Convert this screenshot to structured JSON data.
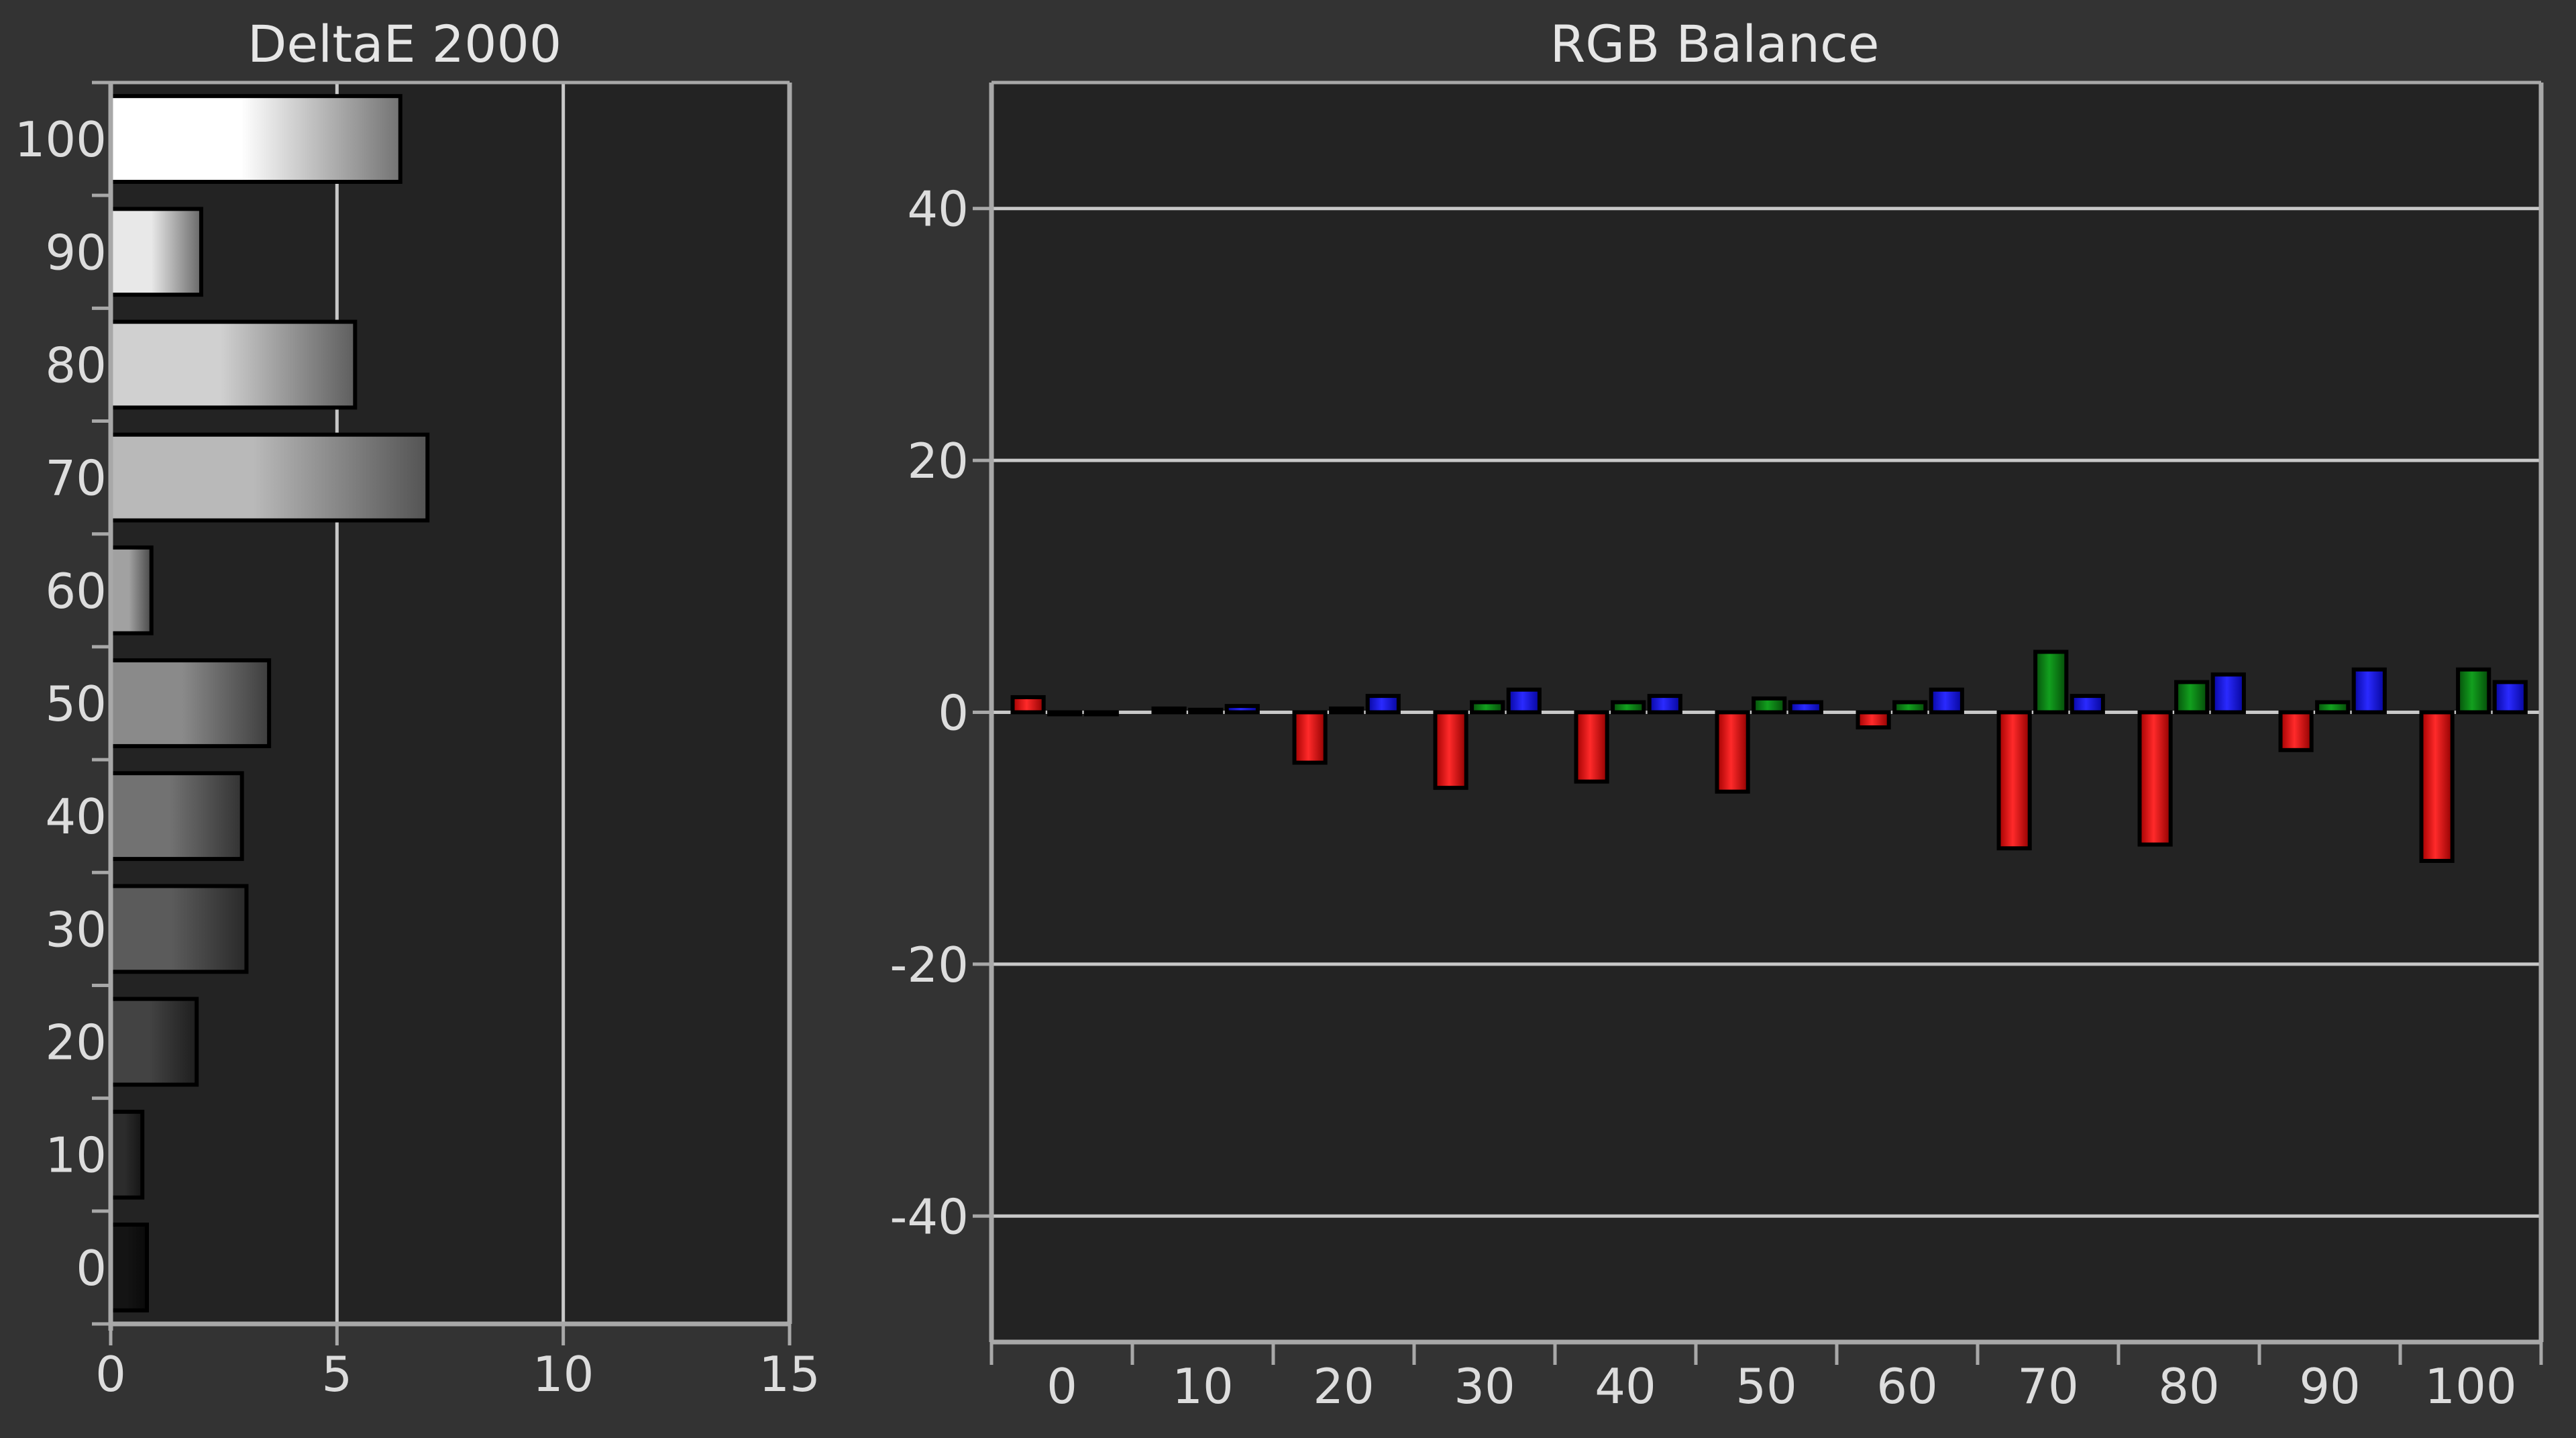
{
  "colors": {
    "background": "#333333",
    "plot_background": "#232323",
    "gridline": "#c8c8c8",
    "axis": "#a8a8a8",
    "text": "#dddddd",
    "red": "#ff1010",
    "green": "#0a8c14",
    "blue": "#1414ff"
  },
  "chart_data": [
    {
      "type": "bar",
      "orientation": "horizontal",
      "title": "DeltaE 2000",
      "xlabel": "",
      "ylabel": "",
      "categories": [
        "100",
        "90",
        "80",
        "70",
        "60",
        "50",
        "40",
        "30",
        "20",
        "10",
        "0"
      ],
      "values": [
        6.4,
        2.0,
        5.4,
        7.0,
        0.9,
        3.5,
        2.9,
        3.0,
        1.9,
        0.7,
        0.8
      ],
      "xlim": [
        0,
        15
      ],
      "xticks": [
        "0",
        "5",
        "10",
        "15"
      ],
      "grid": "vertical at 5 and 10",
      "legend": "none",
      "bar_style": "grayscale gradient, brightness increases with category"
    },
    {
      "type": "bar",
      "orientation": "vertical",
      "title": "RGB Balance",
      "xlabel": "",
      "ylabel": "",
      "categories": [
        "0",
        "10",
        "20",
        "30",
        "40",
        "50",
        "60",
        "70",
        "80",
        "90",
        "100"
      ],
      "series": [
        {
          "color": "red",
          "values": [
            1.2,
            0.3,
            -4.0,
            -6.0,
            -5.5,
            -6.3,
            -1.2,
            -10.8,
            -10.5,
            -3.0,
            -11.8
          ]
        },
        {
          "color": "green",
          "values": [
            0.0,
            0.2,
            0.3,
            0.8,
            0.8,
            1.1,
            0.8,
            4.8,
            2.4,
            0.8,
            3.4
          ]
        },
        {
          "color": "blue",
          "values": [
            0.0,
            0.5,
            1.3,
            1.8,
            1.3,
            0.8,
            1.8,
            1.3,
            3.0,
            3.4,
            2.4
          ]
        }
      ],
      "ylim": [
        -50,
        50
      ],
      "yticks": [
        "40",
        "20",
        "0",
        "-20",
        "-40"
      ],
      "grid": "horizontal at 40, 20, 0, -20, -40",
      "legend": "none"
    }
  ]
}
